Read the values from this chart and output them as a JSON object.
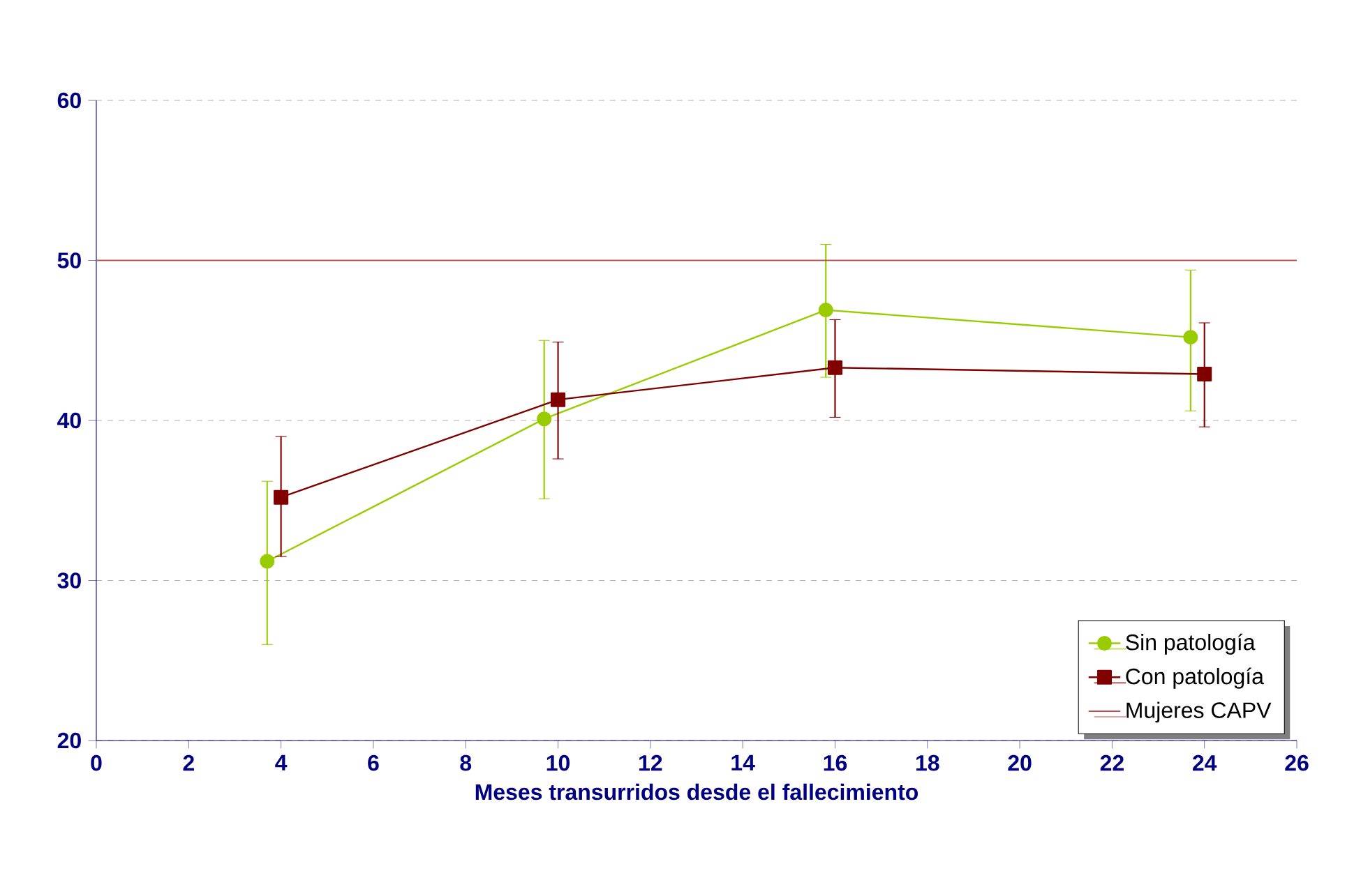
{
  "chart_data": {
    "type": "line",
    "xlabel": "Meses transurridos desde el fallecimiento",
    "xlim": [
      0,
      26
    ],
    "xticks": [
      0,
      2,
      4,
      6,
      8,
      10,
      12,
      14,
      16,
      18,
      20,
      22,
      24,
      26
    ],
    "ylim": [
      20,
      60
    ],
    "yticks": [
      20,
      30,
      40,
      50,
      60
    ],
    "grid": "y",
    "legend": "bottom right",
    "series": [
      {
        "name": "Sin patología",
        "color": "#99cc00",
        "marker": "circle",
        "x": [
          3.7,
          9.7,
          15.8,
          23.7
        ],
        "values": [
          31.2,
          40.1,
          46.9,
          45.2
        ],
        "errors": [
          [
            26.0,
            36.2
          ],
          [
            35.1,
            45.0
          ],
          [
            42.7,
            51.0
          ],
          [
            40.6,
            49.4
          ]
        ]
      },
      {
        "name": "Con patología",
        "color": "#800000",
        "marker": "square",
        "x": [
          4.0,
          10.0,
          16.0,
          24.0
        ],
        "values": [
          35.2,
          41.3,
          43.3,
          42.9
        ],
        "errors": [
          [
            31.5,
            39.0
          ],
          [
            37.6,
            44.9
          ],
          [
            40.2,
            46.3
          ],
          [
            39.6,
            46.1
          ]
        ]
      }
    ],
    "ref_lines": [
      {
        "axis": "y",
        "value": 50,
        "label": "Mujeres CAPV",
        "color": "#c0504d"
      }
    ]
  }
}
